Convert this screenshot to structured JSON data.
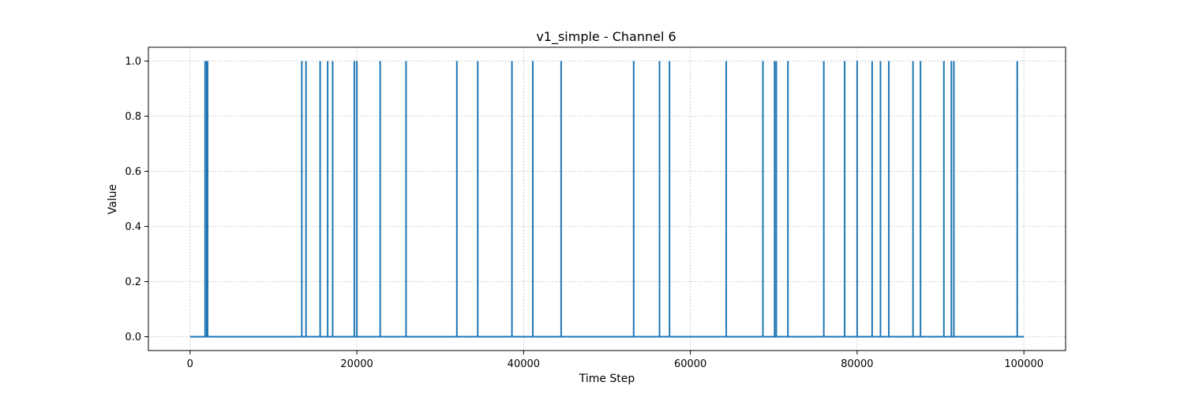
{
  "chart_data": {
    "type": "line",
    "title": "v1_simple - Channel 6",
    "xlabel": "Time Step",
    "ylabel": "Value",
    "xlim": [
      -5000,
      105000
    ],
    "ylim": [
      -0.05,
      1.05
    ],
    "x_ticks": [
      0,
      20000,
      40000,
      60000,
      80000,
      100000
    ],
    "x_tick_labels": [
      "0",
      "20000",
      "40000",
      "60000",
      "80000",
      "100000"
    ],
    "y_ticks": [
      0.0,
      0.2,
      0.4,
      0.6,
      0.8,
      1.0
    ],
    "y_tick_labels": [
      "0.0",
      "0.2",
      "0.4",
      "0.6",
      "0.8",
      "1.0"
    ],
    "grid": true,
    "legend": "none",
    "series": [
      {
        "color": "#1f77b4",
        "baseline": 0,
        "x_range": [
          0,
          100000
        ],
        "spike_value": 1,
        "spike_x": [
          1800,
          2000,
          2100,
          13400,
          13900,
          15600,
          16500,
          17100,
          19700,
          20000,
          22800,
          25900,
          32000,
          34500,
          38600,
          41100,
          44500,
          53200,
          56300,
          57500,
          64300,
          68700,
          70100,
          70300,
          71700,
          76000,
          78500,
          80000,
          81800,
          82800,
          83800,
          86700,
          87600,
          90400,
          91300,
          91600,
          99200
        ]
      }
    ]
  }
}
